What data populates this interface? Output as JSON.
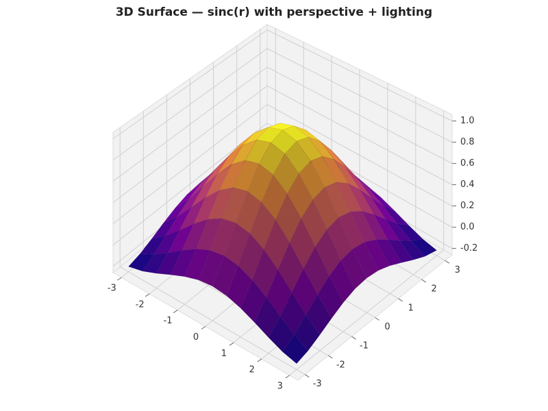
{
  "chart_data": {
    "type": "surface",
    "title": "3D Surface — sinc(r) with perspective + lighting",
    "x": [
      -3,
      -2.5,
      -2,
      -1.5,
      -1,
      -0.5,
      0,
      0.5,
      1,
      1.5,
      2,
      2.5,
      3
    ],
    "y": [
      -3,
      -2.5,
      -2,
      -1.5,
      -1,
      -0.5,
      0,
      0.5,
      1,
      1.5,
      2,
      2.5,
      3
    ],
    "z": [
      [
        -0.21,
        -0.178,
        -0.124,
        -0.063,
        -0.007,
        0.033,
        0.047,
        0.033,
        -0.007,
        -0.063,
        -0.124,
        -0.178,
        -0.21
      ],
      [
        -0.178,
        -0.109,
        -0.019,
        0.077,
        0.161,
        0.219,
        0.239,
        0.219,
        0.161,
        0.077,
        -0.019,
        -0.109,
        -0.178
      ],
      [
        -0.124,
        -0.019,
        0.109,
        0.239,
        0.352,
        0.428,
        0.455,
        0.428,
        0.352,
        0.239,
        0.109,
        -0.019,
        -0.124
      ],
      [
        -0.063,
        0.077,
        0.239,
        0.402,
        0.54,
        0.632,
        0.665,
        0.632,
        0.54,
        0.402,
        0.239,
        0.077,
        -0.063
      ],
      [
        -0.007,
        0.161,
        0.352,
        0.54,
        0.698,
        0.804,
        0.841,
        0.804,
        0.698,
        0.54,
        0.352,
        0.161,
        -0.007
      ],
      [
        0.033,
        0.219,
        0.428,
        0.632,
        0.804,
        0.919,
        0.959,
        0.919,
        0.804,
        0.632,
        0.428,
        0.219,
        0.033
      ],
      [
        0.047,
        0.239,
        0.455,
        0.665,
        0.841,
        0.959,
        1,
        0.959,
        0.841,
        0.665,
        0.455,
        0.239,
        0.047
      ],
      [
        0.033,
        0.219,
        0.428,
        0.632,
        0.804,
        0.919,
        0.959,
        0.919,
        0.804,
        0.632,
        0.428,
        0.219,
        0.033
      ],
      [
        -0.007,
        0.161,
        0.352,
        0.54,
        0.698,
        0.804,
        0.841,
        0.804,
        0.698,
        0.54,
        0.352,
        0.161,
        -0.007
      ],
      [
        -0.063,
        0.077,
        0.239,
        0.402,
        0.54,
        0.632,
        0.665,
        0.632,
        0.54,
        0.402,
        0.239,
        0.077,
        -0.063
      ],
      [
        -0.124,
        -0.019,
        0.109,
        0.239,
        0.352,
        0.428,
        0.455,
        0.428,
        0.352,
        0.239,
        0.109,
        -0.019,
        -0.124
      ],
      [
        -0.178,
        -0.109,
        -0.019,
        0.077,
        0.161,
        0.219,
        0.239,
        0.219,
        0.161,
        0.077,
        -0.019,
        -0.109,
        -0.178
      ],
      [
        -0.21,
        -0.178,
        -0.124,
        -0.063,
        -0.007,
        0.033,
        0.047,
        0.033,
        -0.007,
        -0.063,
        -0.124,
        -0.178,
        -0.21
      ]
    ],
    "xlim": [
      -3.3,
      3.3
    ],
    "ylim": [
      -3.3,
      3.3
    ],
    "zlim": [
      -0.26,
      1.06
    ],
    "xticks": [
      -3,
      -2,
      -1,
      0,
      1,
      2,
      3
    ],
    "yticks": [
      -3,
      -2,
      -1,
      0,
      1,
      2,
      3
    ],
    "zticks": [
      -0.2,
      {
        "value": 0,
        "label": "0.0"
      },
      0.2,
      0.4,
      0.6,
      0.8,
      {
        "value": 1,
        "label": "1.0"
      }
    ],
    "grid": true,
    "colormap": [
      "#0d0887",
      "#7e03a8",
      "#cc4778",
      "#f89540",
      "#f0f921"
    ]
  }
}
